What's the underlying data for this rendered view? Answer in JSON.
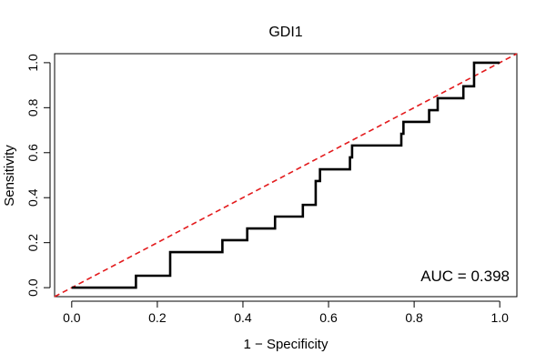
{
  "chart_data": {
    "type": "line",
    "title": "GDI1",
    "xlabel": "1 − Specificity",
    "ylabel": "Sensitivity",
    "xlim": [
      -0.04,
      1.04
    ],
    "ylim": [
      -0.04,
      1.04
    ],
    "xticks": [
      0.0,
      0.2,
      0.4,
      0.6,
      0.8,
      1.0
    ],
    "xtick_labels": [
      "0.0",
      "0.2",
      "0.4",
      "0.6",
      "0.8",
      "1.0"
    ],
    "yticks": [
      0.0,
      0.2,
      0.4,
      0.6,
      0.8,
      1.0
    ],
    "ytick_labels": [
      "0.0",
      "0.2",
      "0.4",
      "0.6",
      "0.8",
      "1.0"
    ],
    "grid": false,
    "annotation": "AUC = 0.398",
    "series": [
      {
        "color": "#000000",
        "style": "solid",
        "x": [
          0.0,
          0.15,
          0.15,
          0.23,
          0.23,
          0.352,
          0.352,
          0.41,
          0.41,
          0.475,
          0.475,
          0.54,
          0.54,
          0.57,
          0.57,
          0.58,
          0.58,
          0.65,
          0.65,
          0.655,
          0.655,
          0.77,
          0.77,
          0.775,
          0.775,
          0.835,
          0.835,
          0.855,
          0.855,
          0.915,
          0.915,
          0.94,
          0.94,
          1.0
        ],
        "y": [
          0.0,
          0.0,
          0.053,
          0.053,
          0.158,
          0.158,
          0.211,
          0.211,
          0.263,
          0.263,
          0.316,
          0.316,
          0.368,
          0.368,
          0.474,
          0.474,
          0.526,
          0.526,
          0.579,
          0.579,
          0.632,
          0.632,
          0.684,
          0.684,
          0.737,
          0.737,
          0.789,
          0.789,
          0.842,
          0.842,
          0.895,
          0.895,
          1.0,
          1.0
        ]
      },
      {
        "color": "#e31a1c",
        "style": "dashed",
        "x": [
          -0.04,
          1.04
        ],
        "y": [
          -0.04,
          1.04
        ]
      }
    ]
  }
}
